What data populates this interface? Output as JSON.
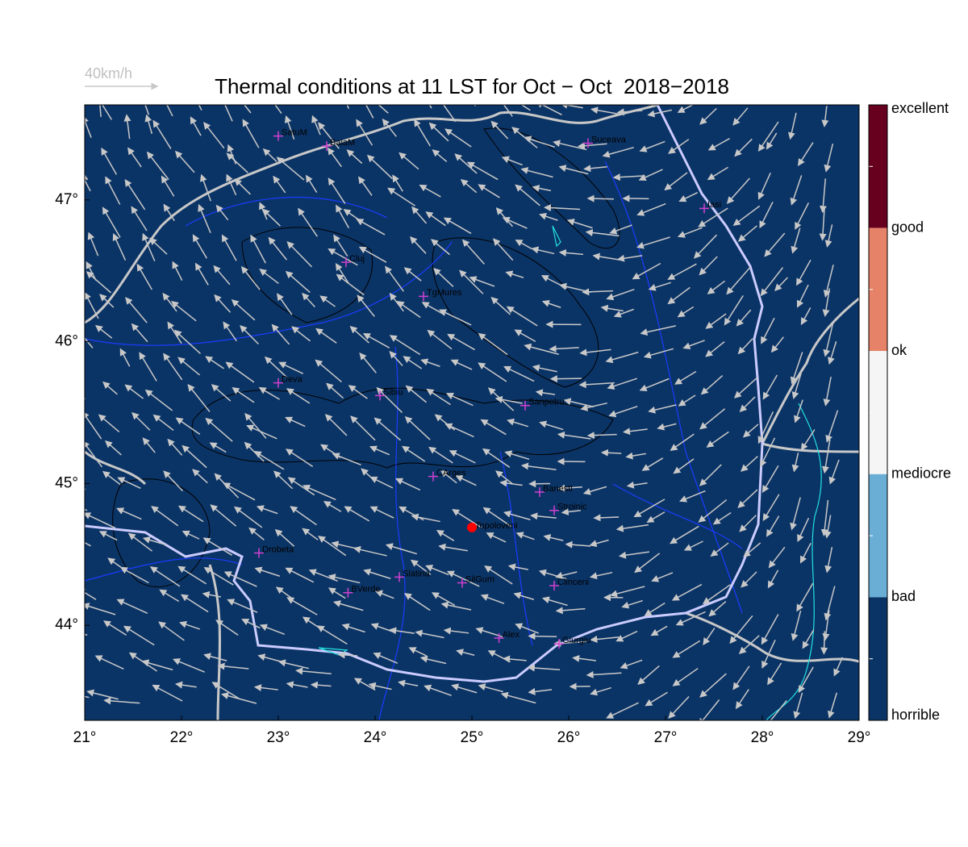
{
  "title": "Thermal conditions at 11 LST for Oct − Oct  2018−2018",
  "wind_scale": "40km/h",
  "map": {
    "xlim": [
      21,
      29
    ],
    "ylim": [
      43.33,
      47.67
    ],
    "xticks": [
      {
        "value": 21,
        "label": "21°"
      },
      {
        "value": 22,
        "label": "22°"
      },
      {
        "value": 23,
        "label": "23°"
      },
      {
        "value": 24,
        "label": "24°"
      },
      {
        "value": 25,
        "label": "25°"
      },
      {
        "value": 26,
        "label": "26°"
      },
      {
        "value": 27,
        "label": "27°"
      },
      {
        "value": 28,
        "label": "28°"
      },
      {
        "value": 29,
        "label": "29°"
      }
    ],
    "yticks": [
      {
        "value": 44,
        "label": "44°"
      },
      {
        "value": 45,
        "label": "45°"
      },
      {
        "value": 46,
        "label": "46°"
      },
      {
        "value": 47,
        "label": "47°"
      }
    ],
    "background": "#0b3466"
  },
  "cities": [
    {
      "name": "SatuM",
      "lon": 23.0,
      "lat": 47.45
    },
    {
      "name": "BaiaM",
      "lon": 23.5,
      "lat": 47.38
    },
    {
      "name": "Suceava",
      "lon": 26.2,
      "lat": 47.4
    },
    {
      "name": "Iasi",
      "lon": 27.4,
      "lat": 46.94
    },
    {
      "name": "Cluj",
      "lon": 23.7,
      "lat": 46.56
    },
    {
      "name": "TgMures",
      "lon": 24.5,
      "lat": 46.32
    },
    {
      "name": "Deva",
      "lon": 23.0,
      "lat": 45.71
    },
    {
      "name": "Sibiu",
      "lon": 24.05,
      "lat": 45.62
    },
    {
      "name": "Sanpetru",
      "lon": 25.55,
      "lat": 45.55
    },
    {
      "name": "CArges",
      "lon": 24.6,
      "lat": 45.05
    },
    {
      "name": "Banesti",
      "lon": 25.7,
      "lat": 44.94
    },
    {
      "name": "Stroinic",
      "lon": 25.85,
      "lat": 44.81
    },
    {
      "name": "Drobeta",
      "lon": 22.8,
      "lat": 44.51
    },
    {
      "name": "Slatina",
      "lon": 24.25,
      "lat": 44.34
    },
    {
      "name": "SilGum",
      "lon": 24.9,
      "lat": 44.3
    },
    {
      "name": "Clinceni",
      "lon": 25.85,
      "lat": 44.28
    },
    {
      "name": "BVerde",
      "lon": 23.72,
      "lat": 44.23
    },
    {
      "name": "Alex",
      "lon": 25.28,
      "lat": 43.91
    },
    {
      "name": "Giurgiu",
      "lon": 25.9,
      "lat": 43.87
    }
  ],
  "highlight": {
    "name": "Topoloveni",
    "lon": 25.0,
    "lat": 44.69,
    "color": "#ff0000"
  },
  "colorbar": {
    "labels": [
      "excellent",
      "good",
      "ok",
      "mediocre",
      "bad",
      "horrible"
    ],
    "colors": [
      "#67001f",
      "#e58268",
      "#f5f5f5",
      "#6aaed6",
      "#0b3466"
    ]
  }
}
